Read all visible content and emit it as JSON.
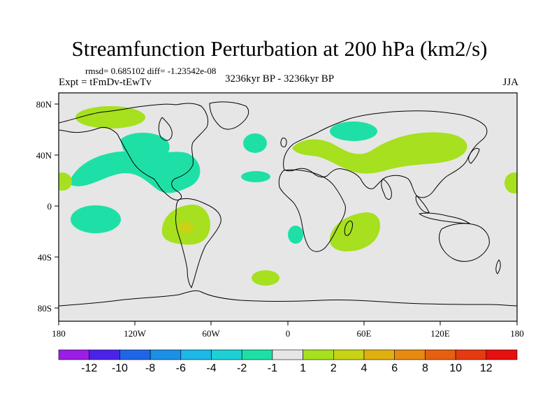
{
  "title": "Streamfunction Perturbation at 200 hPa (km2/s)",
  "stats": "rmsd= 0.685102 diff= -1.23542e-08",
  "experiment": "Expt = tFmDv-tEwTv",
  "period": "3236kyr BP - 3236kyr BP",
  "season": "JJA",
  "map": {
    "lon_labels": [
      "180",
      "120W",
      "60W",
      "0",
      "60E",
      "120E",
      "180"
    ],
    "lat_labels": [
      "80N",
      "40N",
      "0",
      "40S",
      "80S"
    ]
  },
  "colorbar": {
    "labels": [
      "-12",
      "-10",
      "-8",
      "-6",
      "-4",
      "-2",
      "-1",
      "1",
      "2",
      "4",
      "6",
      "8",
      "10",
      "12"
    ],
    "colors": [
      "#9a1ee6",
      "#4b23e8",
      "#1f66e6",
      "#1c8fe6",
      "#1db8e6",
      "#1dd0d6",
      "#1ee0a6",
      "#e6e6e6",
      "#a6e01e",
      "#c8d316",
      "#e0b010",
      "#e68a10",
      "#e66010",
      "#e63a10",
      "#e61010"
    ]
  },
  "colors": {
    "background": "#e6e6e6",
    "negative_1": "#1ee0a6",
    "positive_1": "#a6e01e",
    "positive_2": "#c8d316",
    "coast": "#000000"
  }
}
